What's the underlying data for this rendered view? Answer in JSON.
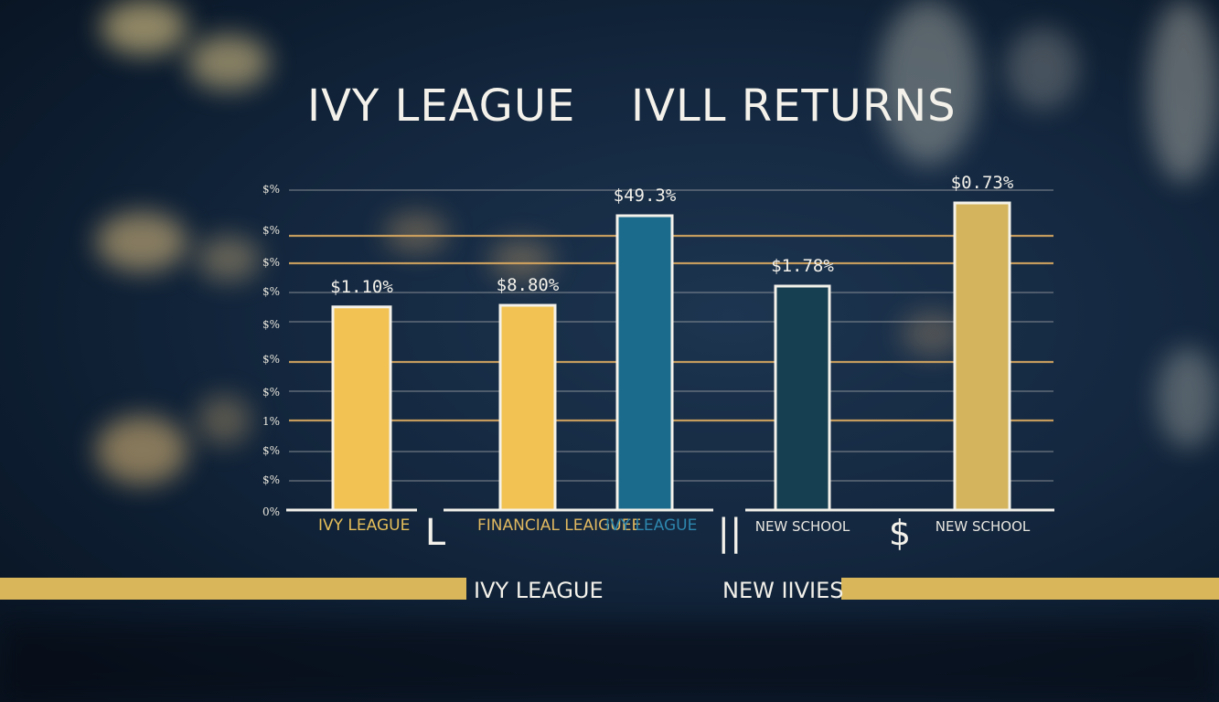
{
  "colors": {
    "gold": "#f2c353",
    "gold_dark": "#d9b65a",
    "teal_blue": "#1b6b8c",
    "dark_teal": "#163f52",
    "grid_gold": "#d8a860",
    "grid_gray": "#b8b8b8",
    "text_light": "#f3f1ea"
  },
  "titles": {
    "left": "IVY LEAGUE",
    "right": "IVLL RETURNS"
  },
  "chart_data": {
    "type": "bar",
    "title": "IVY LEAGUE IVLL RETURNS",
    "y_tick_labels": [
      "$%",
      "$%",
      "$%",
      "$%",
      "$%",
      "$%",
      "$%",
      "1%",
      "$%",
      "$%",
      "0%"
    ],
    "categories": [
      "IVY LEAGUE",
      "FINANCIAL LEAIGUEE",
      "IVY LEAGUE",
      "NEW SCHOOL",
      "NEW SCHOOL"
    ],
    "data_labels": [
      "$1.10%",
      "$8.80%",
      "$49.3%",
      "$1.78%",
      "$0.73%"
    ],
    "values": [
      1.1,
      8.8,
      49.3,
      1.78,
      0.73
    ],
    "bar_colors": [
      "#f2c353",
      "#f2c353",
      "#1b6b8c",
      "#163f52",
      "#d4b45c"
    ],
    "bar_levels": [
      0.635,
      0.64,
      0.92,
      0.7,
      0.96
    ],
    "separators": [
      "L",
      "||",
      "$"
    ],
    "bottom_labels": [
      "IVY LEAGUE",
      "NEW IIVIES"
    ]
  }
}
